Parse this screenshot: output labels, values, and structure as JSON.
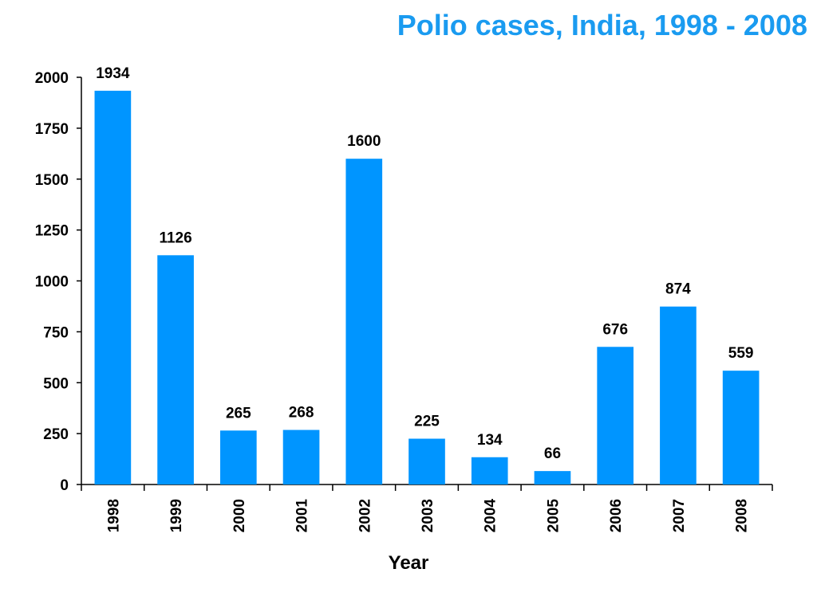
{
  "chart_data": {
    "type": "bar",
    "title": "Polio cases, India, 1998 - 2008",
    "xlabel": "Year",
    "ylabel": "",
    "categories": [
      "1998",
      "1999",
      "2000",
      "2001",
      "2002",
      "2003",
      "2004",
      "2005",
      "2006",
      "2007",
      "2008"
    ],
    "values": [
      1934,
      1126,
      265,
      268,
      1600,
      225,
      134,
      66,
      676,
      874,
      559
    ],
    "data_labels": [
      "1934",
      "1126",
      "265",
      "268",
      "1600",
      "225",
      "134",
      "66",
      "676",
      "874",
      "559"
    ],
    "y_ticks": [
      0,
      250,
      500,
      750,
      1000,
      1250,
      1500,
      1750,
      2000
    ],
    "ylim": [
      0,
      2000
    ],
    "grid": false,
    "legend": "none",
    "x_tick_rotation": "vertical",
    "colors": {
      "bar": "#0095FF",
      "title": "#1A9BF0",
      "axis": "#000000"
    }
  }
}
